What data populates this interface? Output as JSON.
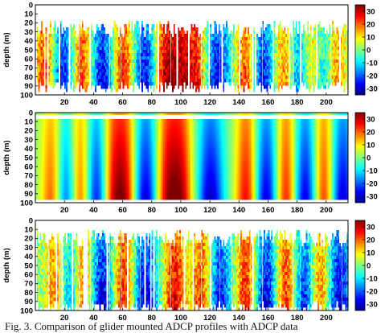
{
  "caption": "Fig. 3.   Comparison of glider mounted ADCP profiles with ADCP data",
  "chart_data": [
    {
      "type": "heatmap",
      "ylabel": "depth (m)",
      "xlim": [
        0,
        215
      ],
      "ylim": [
        100,
        0
      ],
      "xticks": [
        20,
        40,
        60,
        80,
        100,
        120,
        140,
        160,
        180,
        200
      ],
      "yticks": [
        0,
        10,
        20,
        30,
        40,
        50,
        60,
        70,
        80,
        90,
        100
      ],
      "colorbar": {
        "min": -35,
        "max": 35,
        "ticks": [
          30,
          20,
          10,
          0,
          -10,
          -20,
          -30
        ]
      },
      "coverage": "glider profiles: gappy, data mostly between 15 m and 95 m",
      "positive_peaks_x": [
        7,
        32,
        60,
        88,
        98,
        110,
        145,
        172,
        190,
        205
      ],
      "negative_peaks_x": [
        18,
        45,
        75,
        125,
        155,
        180,
        198
      ]
    },
    {
      "type": "heatmap",
      "ylabel": "depth (m)",
      "xlim": [
        0,
        215
      ],
      "ylim": [
        100,
        0
      ],
      "xticks": [
        20,
        40,
        60,
        80,
        100,
        120,
        140,
        160,
        180,
        200
      ],
      "yticks": [
        0,
        10,
        20,
        30,
        40,
        50,
        60,
        70,
        80,
        90,
        100
      ],
      "colorbar": {
        "min": -35,
        "max": 35,
        "ticks": [
          30,
          20,
          10,
          0,
          -10,
          -20,
          -30
        ]
      },
      "coverage": "continuous from 5 m to 95 m",
      "positive_peaks_x": [
        12,
        30,
        52,
        62,
        90,
        100,
        145,
        172,
        198
      ],
      "negative_peaks_x": [
        20,
        42,
        75,
        120,
        158,
        185,
        210
      ]
    },
    {
      "type": "heatmap",
      "ylabel": "depth (m)",
      "xlim": [
        0,
        215
      ],
      "ylim": [
        100,
        0
      ],
      "xticks": [
        20,
        40,
        60,
        80,
        100,
        120,
        140,
        160,
        180,
        200
      ],
      "yticks": [
        0,
        10,
        20,
        30,
        40,
        50,
        60,
        70,
        80,
        90,
        100
      ],
      "colorbar": {
        "min": -35,
        "max": 35,
        "ticks": [
          30,
          20,
          10,
          0,
          -10,
          -20,
          -30
        ]
      },
      "coverage": "gappy, data mostly between 8 m and 100 m",
      "positive_peaks_x": [
        15,
        32,
        60,
        95,
        115,
        145,
        172,
        195
      ],
      "negative_peaks_x": [
        22,
        45,
        75,
        125,
        158,
        185,
        208
      ]
    }
  ]
}
